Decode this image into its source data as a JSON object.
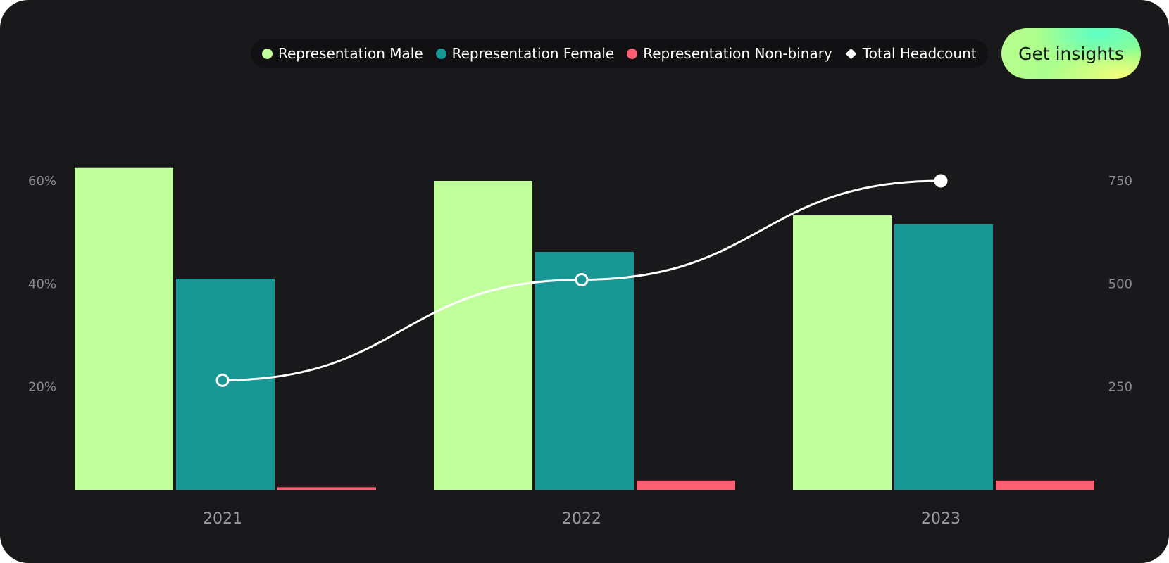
{
  "legend": {
    "items": [
      {
        "label": "Representation Male",
        "color": "#c0ff99",
        "shape": "circle"
      },
      {
        "label": "Representation Female",
        "color": "#189795",
        "shape": "circle"
      },
      {
        "label": "Representation Non-binary",
        "color": "#ff5f73",
        "shape": "circle"
      },
      {
        "label": "Total Headcount",
        "color": "#ffffff",
        "shape": "diamond"
      }
    ]
  },
  "actions": {
    "insights_label": "Get insights"
  },
  "chart_data": {
    "type": "bar",
    "categories": [
      "2021",
      "2022",
      "2023"
    ],
    "series": [
      {
        "name": "Representation Male",
        "axis": "left",
        "type": "bar",
        "color": "#c0ff99",
        "values": [
          62.5,
          60,
          53.3
        ]
      },
      {
        "name": "Representation Female",
        "axis": "left",
        "type": "bar",
        "color": "#189795",
        "values": [
          41,
          46.2,
          51.6
        ]
      },
      {
        "name": "Representation Non-binary",
        "axis": "left",
        "type": "bar",
        "color": "#ff5f73",
        "values": [
          0.5,
          1.8,
          1.8
        ]
      },
      {
        "name": "Total Headcount",
        "axis": "right",
        "type": "line",
        "color": "#ffffff",
        "values": [
          266,
          510,
          750
        ]
      }
    ],
    "y_left": {
      "ticks": [
        "20%",
        "40%",
        "60%"
      ],
      "tick_values": [
        20,
        40,
        60
      ],
      "range": [
        0,
        60
      ]
    },
    "y_right": {
      "ticks": [
        "250",
        "500",
        "750"
      ],
      "tick_values": [
        250,
        500,
        750
      ],
      "range": [
        0,
        750
      ]
    },
    "grid": false,
    "legend_position": "top-right"
  }
}
